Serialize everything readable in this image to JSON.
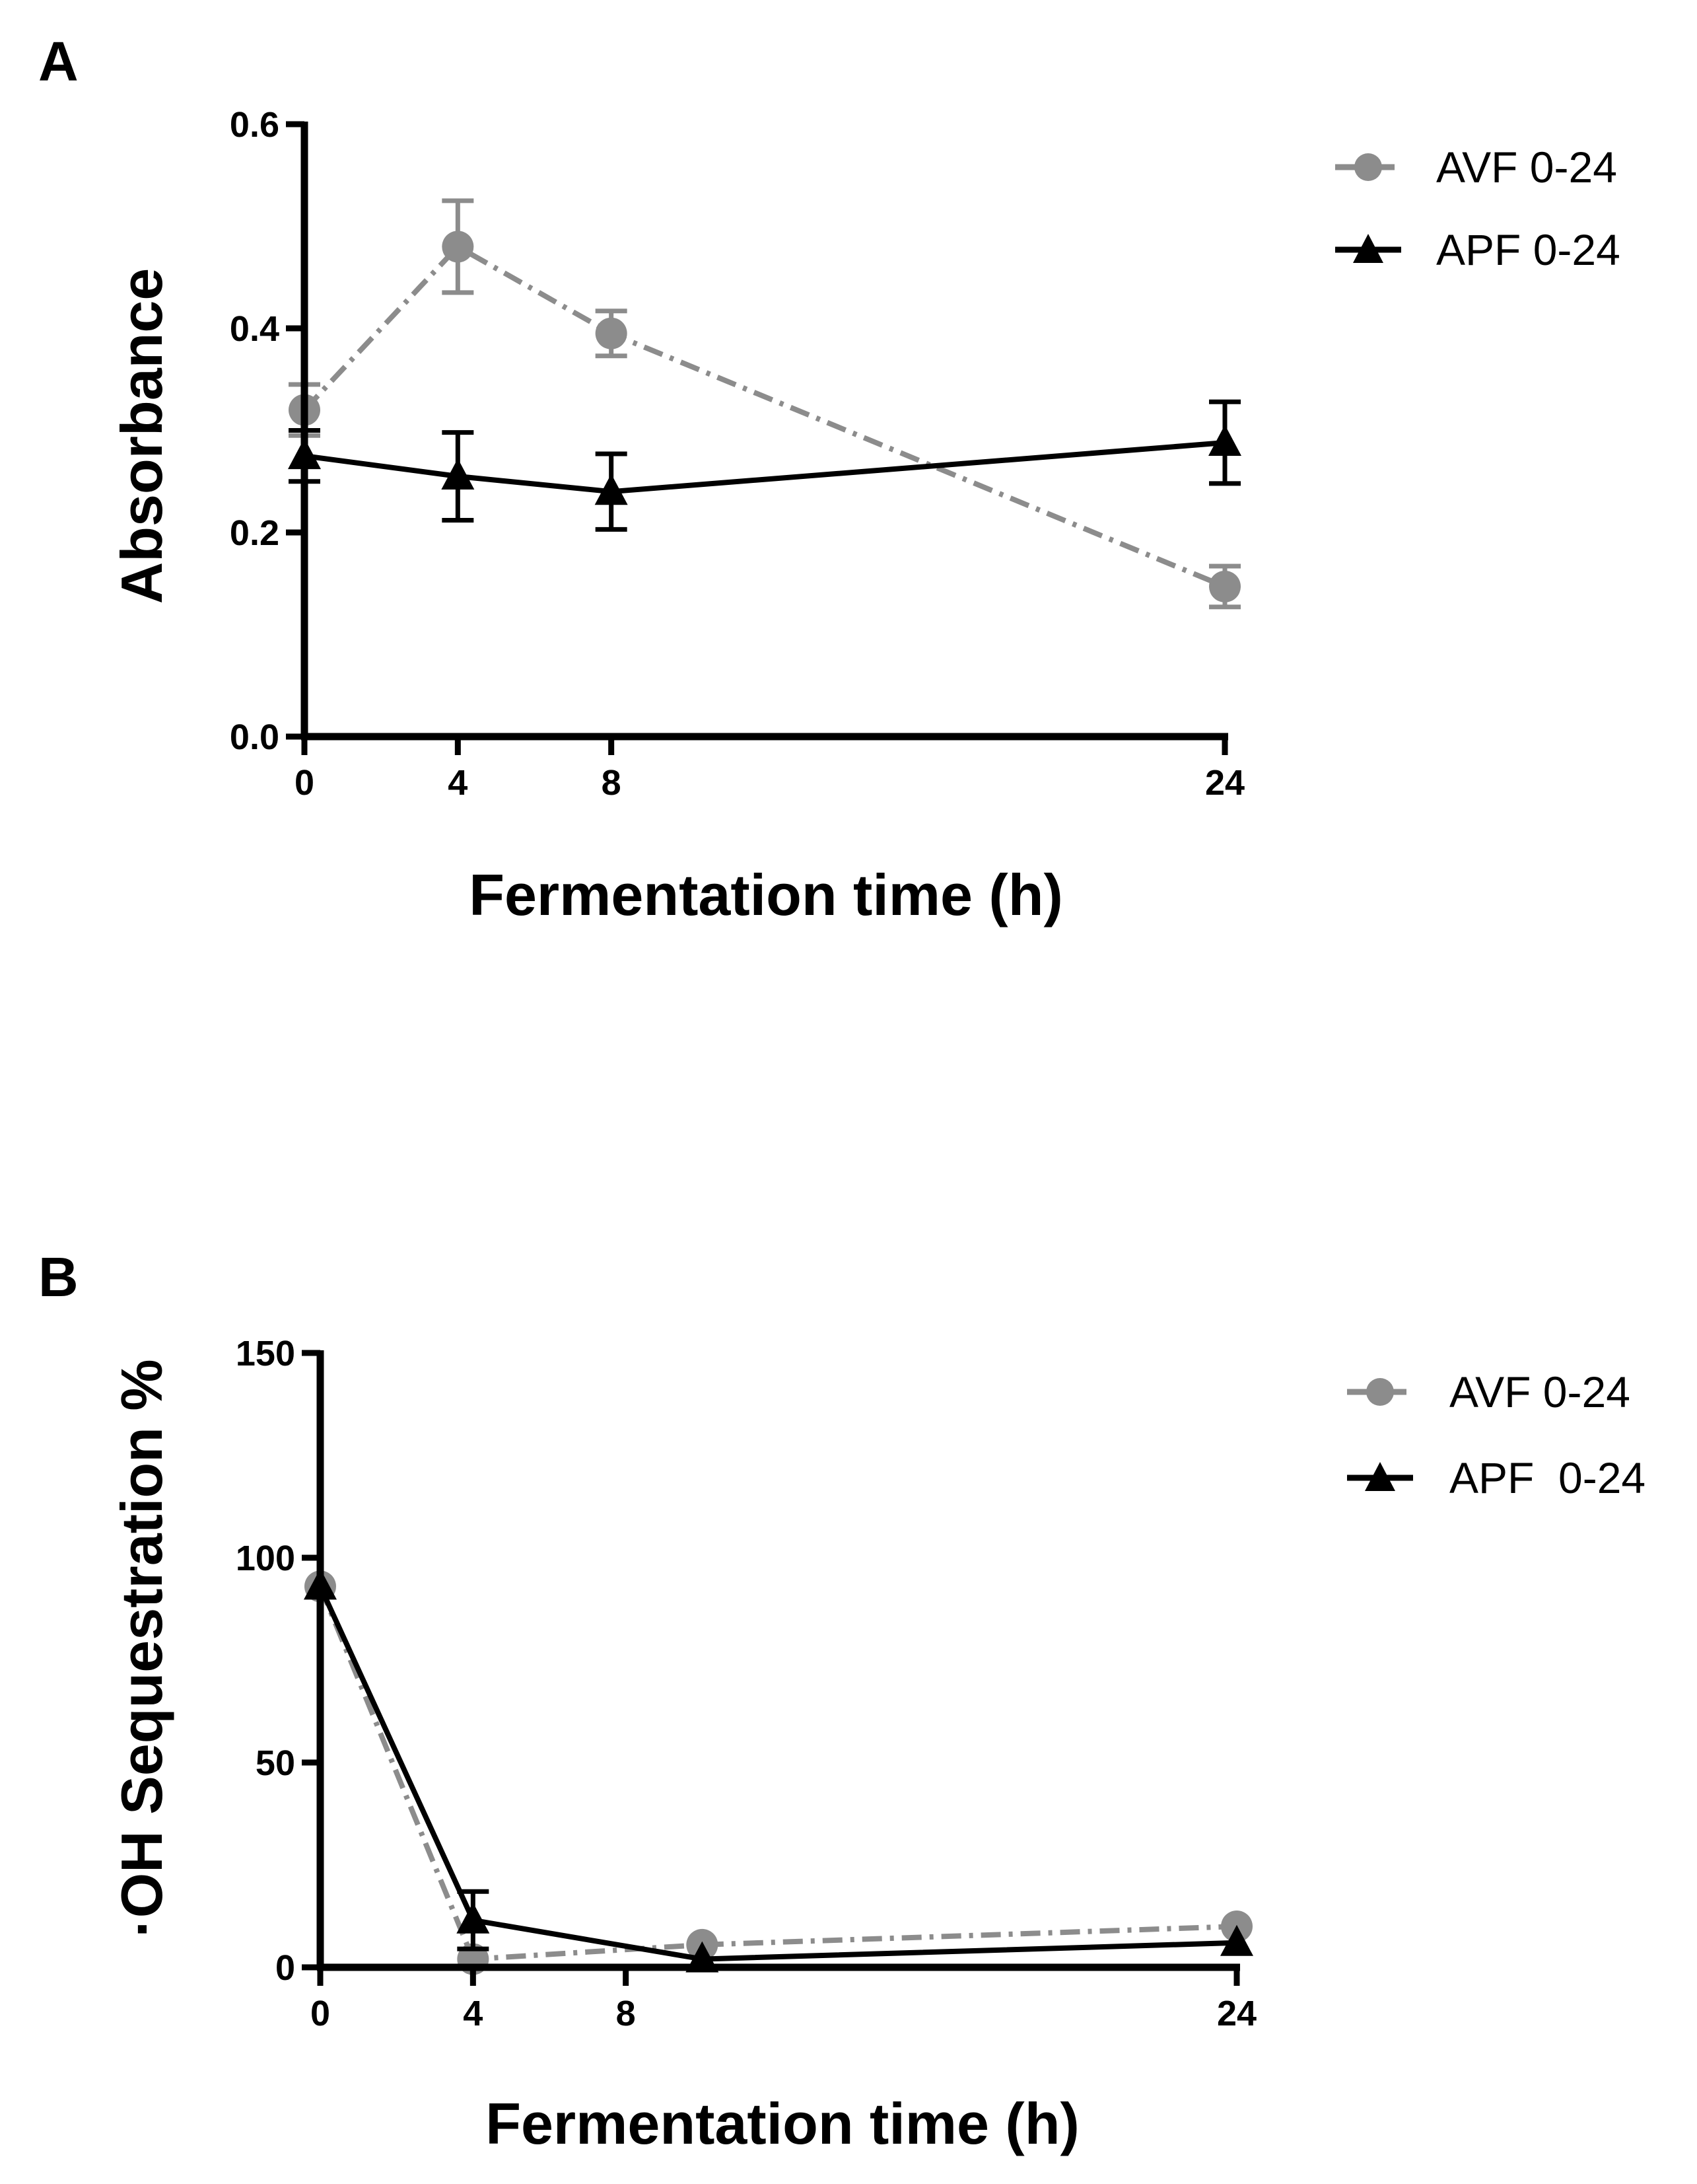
{
  "chart_data": [
    {
      "panel": "A",
      "type": "line",
      "title": "",
      "xlabel": "Fermentation time (h)",
      "ylabel": "Absorbance",
      "xlim": [
        0,
        24
      ],
      "ylim": [
        0,
        0.6
      ],
      "xticks": [
        0,
        4,
        8,
        24
      ],
      "xtick_labels": [
        "0",
        "4",
        "8",
        "24"
      ],
      "yticks": [
        0,
        0.2,
        0.4,
        0.6
      ],
      "ytick_labels": [
        "0.0",
        "0.2",
        "0.4",
        "0.6"
      ],
      "grid": false,
      "legend_position": "top-right, outside plot",
      "series": [
        {
          "name": "AVF 0-24",
          "marker": "circle",
          "line_style": "dash-dot",
          "color": "#8c8c8c",
          "x": [
            0,
            4,
            8,
            24
          ],
          "values": [
            0.32,
            0.48,
            0.395,
            0.147
          ],
          "errors": [
            0.025,
            0.045,
            0.022,
            0.02
          ]
        },
        {
          "name": "APF 0-24",
          "marker": "triangle",
          "line_style": "solid",
          "color": "#000000",
          "x": [
            0,
            4,
            8,
            24
          ],
          "values": [
            0.275,
            0.255,
            0.24,
            0.288
          ],
          "errors": [
            0.025,
            0.043,
            0.037,
            0.04
          ]
        }
      ]
    },
    {
      "panel": "B",
      "type": "line",
      "title": "",
      "xlabel": "Fermentation time (h)",
      "ylabel": "·OH Sequestration %",
      "xlim": [
        0,
        24
      ],
      "ylim": [
        0,
        150
      ],
      "xticks": [
        0,
        4,
        8,
        24
      ],
      "xtick_labels": [
        "0",
        "4",
        "8",
        "24"
      ],
      "yticks": [
        0,
        50,
        100,
        150
      ],
      "ytick_labels": [
        "0",
        "50",
        "100",
        "150"
      ],
      "grid": false,
      "legend_position": "top-right, outside plot",
      "series": [
        {
          "name": "AVF 0-24",
          "marker": "circle",
          "line_style": "dash-dot",
          "color": "#8c8c8c",
          "x": [
            0,
            4,
            10,
            24
          ],
          "values": [
            93,
            2,
            5.5,
            10
          ],
          "errors": [
            0,
            0,
            0,
            0
          ]
        },
        {
          "name": "APF  0-24",
          "marker": "triangle",
          "line_style": "solid",
          "color": "#000000",
          "x": [
            0,
            4,
            10,
            24
          ],
          "values": [
            93,
            11.5,
            2,
            6
          ],
          "errors": [
            0,
            7,
            0,
            0
          ]
        }
      ]
    }
  ]
}
